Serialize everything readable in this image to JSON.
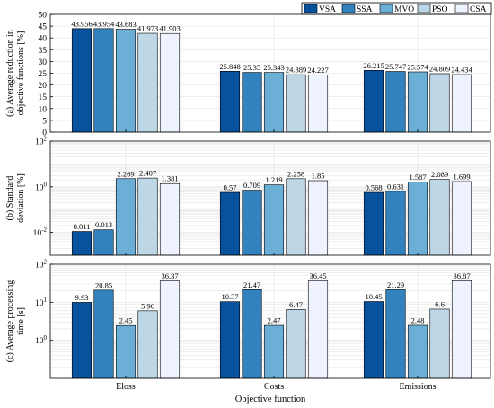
{
  "chart_data": [
    {
      "type": "bar",
      "ylabel_lines": [
        "(a) Average reduction in",
        "objective functions [%]"
      ],
      "scale": "linear",
      "ylim": [
        0,
        50
      ],
      "yticks": [
        0,
        5,
        10,
        15,
        20,
        25,
        30,
        35,
        40,
        45,
        50
      ],
      "yticklabels": [
        "0",
        "5",
        "10",
        "15",
        "20",
        "25",
        "30",
        "35",
        "40",
        "45",
        "50"
      ],
      "grid": true,
      "series": [
        {
          "name": "VSA",
          "values": [
            43.956,
            25.848,
            26.215
          ],
          "labels": [
            "43.956",
            "25.848",
            "26.215"
          ]
        },
        {
          "name": "SSA",
          "values": [
            43.954,
            25.35,
            25.747
          ],
          "labels": [
            "43.954",
            "25.35",
            "25.747"
          ]
        },
        {
          "name": "MVO",
          "values": [
            43.683,
            25.343,
            25.574
          ],
          "labels": [
            "43.683",
            "25.343",
            "25.574"
          ]
        },
        {
          "name": "PSO",
          "values": [
            41.973,
            24.389,
            24.809
          ],
          "labels": [
            "41.973",
            "24.389",
            "24.809"
          ]
        },
        {
          "name": "CSA",
          "values": [
            41.903,
            24.227,
            24.434
          ],
          "labels": [
            "41.903",
            "24.227",
            "24.434"
          ]
        }
      ]
    },
    {
      "type": "bar",
      "ylabel_lines": [
        "(b) Standard",
        "deviation [%]"
      ],
      "scale": "log",
      "ylim": [
        0.001,
        100
      ],
      "yticks": [
        0.01,
        1,
        100
      ],
      "yticklabels": [
        [
          "10",
          "-2"
        ],
        [
          "10",
          "0"
        ],
        [
          "10",
          "2"
        ]
      ],
      "grid": true,
      "series": [
        {
          "name": "VSA",
          "values": [
            0.011,
            0.57,
            0.568
          ],
          "labels": [
            "0.011",
            "0.57",
            "0.568"
          ]
        },
        {
          "name": "SSA",
          "values": [
            0.013,
            0.709,
            0.631
          ],
          "labels": [
            "0.013",
            "0.709",
            "0.631"
          ]
        },
        {
          "name": "MVO",
          "values": [
            2.269,
            1.219,
            1.587
          ],
          "labels": [
            "2.269",
            "1.219",
            "1.587"
          ]
        },
        {
          "name": "PSO",
          "values": [
            2.407,
            2.258,
            2.089
          ],
          "labels": [
            "2.407",
            "2.258",
            "2.089"
          ]
        },
        {
          "name": "CSA",
          "values": [
            1.381,
            1.85,
            1.699
          ],
          "labels": [
            "1.381",
            "1.85",
            "1.699"
          ]
        }
      ]
    },
    {
      "type": "bar",
      "ylabel_lines": [
        "(c) Average processing",
        "time [s]"
      ],
      "scale": "log",
      "ylim": [
        0.1,
        100
      ],
      "yticks": [
        1,
        10,
        100
      ],
      "yticklabels": [
        [
          "10",
          "0"
        ],
        [
          "10",
          "1"
        ],
        [
          "10",
          "2"
        ]
      ],
      "grid": true,
      "series": [
        {
          "name": "VSA",
          "values": [
            9.93,
            10.37,
            10.45
          ],
          "labels": [
            "9.93",
            "10.37",
            "10.45"
          ]
        },
        {
          "name": "SSA",
          "values": [
            20.85,
            21.47,
            21.29
          ],
          "labels": [
            "20.85",
            "21.47",
            "21.29"
          ]
        },
        {
          "name": "MVO",
          "values": [
            2.45,
            2.47,
            2.48
          ],
          "labels": [
            "2.45",
            "2.47",
            "2.48"
          ]
        },
        {
          "name": "PSO",
          "values": [
            5.96,
            6.47,
            6.6
          ],
          "labels": [
            "5.96",
            "6.47",
            "6.6"
          ]
        },
        {
          "name": "CSA",
          "values": [
            36.37,
            36.45,
            36.87
          ],
          "labels": [
            "36.37",
            "36.45",
            "36.87"
          ]
        }
      ]
    }
  ],
  "categories": [
    "Eloss",
    "Costs",
    "Emissions"
  ],
  "xlabel": "Objective function",
  "legend": {
    "placement": "top-right",
    "items": [
      "VSA",
      "SSA",
      "MVO",
      "PSO",
      "CSA"
    ]
  },
  "colors": {
    "VSA": "#08519c",
    "SSA": "#3182bd",
    "MVO": "#6baed6",
    "PSO": "#bdd7e7",
    "CSA": "#eff3ff"
  }
}
